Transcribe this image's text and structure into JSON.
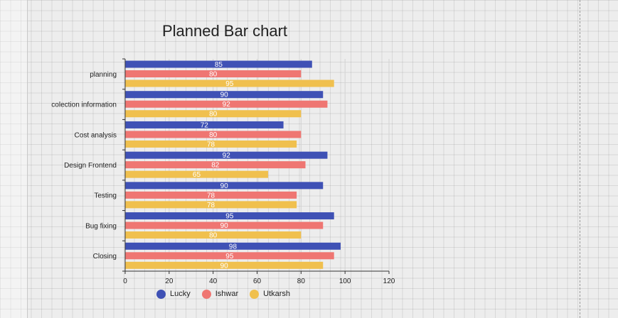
{
  "chart_data": {
    "type": "bar",
    "orientation": "horizontal",
    "title": "Planned Bar chart",
    "categories": [
      "planning",
      "colection information",
      "Cost analysis",
      "Design Frontend",
      "Testing",
      "Bug fixing",
      "Closing"
    ],
    "series": [
      {
        "name": "Lucky",
        "color": "#3f51b5",
        "values": [
          85,
          90,
          72,
          92,
          90,
          95,
          98
        ]
      },
      {
        "name": "Ishwar",
        "color": "#ef7672",
        "values": [
          80,
          92,
          80,
          82,
          78,
          90,
          95
        ]
      },
      {
        "name": "Utkarsh",
        "color": "#f0c04e",
        "values": [
          95,
          80,
          78,
          65,
          78,
          80,
          90
        ]
      }
    ],
    "xlim": [
      0,
      120
    ],
    "x_ticks": [
      "0",
      "20",
      "40",
      "60",
      "80",
      "100",
      "120"
    ],
    "xlabel": "",
    "ylabel": "",
    "grid": true,
    "data_labels": true,
    "legend_position": "bottom-center"
  }
}
